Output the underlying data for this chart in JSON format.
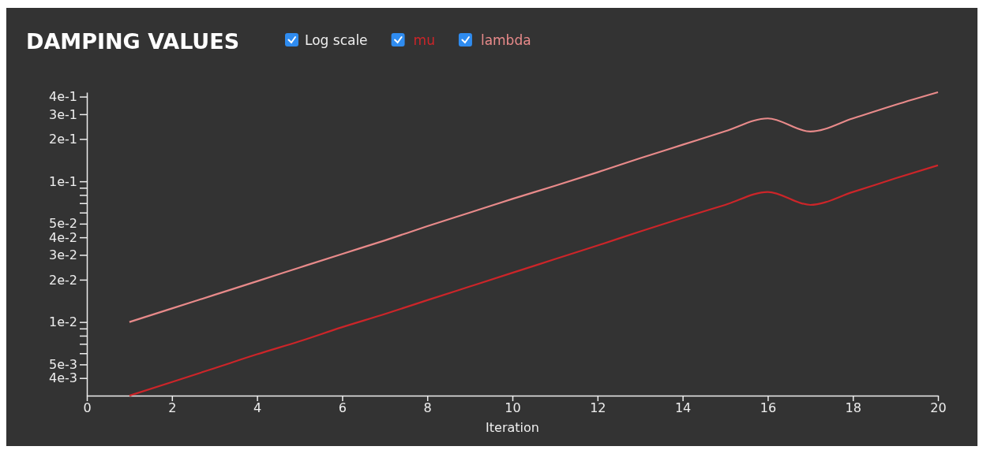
{
  "chart_data": {
    "type": "line",
    "title": "DAMPING VALUES",
    "xlabel": "Iteration",
    "annotations": [
      "Log scale"
    ],
    "log": true,
    "legend": "top",
    "grid": false,
    "x": [
      1,
      2,
      3,
      4,
      5,
      6,
      7,
      8,
      9,
      10,
      11,
      12,
      13,
      14,
      15,
      16,
      17,
      18,
      19,
      20
    ],
    "xlim": [
      0,
      20
    ],
    "xticks": [
      0,
      2,
      4,
      6,
      8,
      10,
      12,
      14,
      16,
      18,
      20
    ],
    "ylim": [
      0.003,
      0.43
    ],
    "yticks": [
      {
        "value": 0.004,
        "label": "4e-3"
      },
      {
        "value": 0.005,
        "label": "5e-3"
      },
      {
        "value": 0.006,
        "label": null
      },
      {
        "value": 0.007,
        "label": null
      },
      {
        "value": 0.008,
        "label": null
      },
      {
        "value": 0.009,
        "label": null
      },
      {
        "value": 0.01,
        "label": "1e-2"
      },
      {
        "value": 0.02,
        "label": "2e-2"
      },
      {
        "value": 0.03,
        "label": "3e-2"
      },
      {
        "value": 0.04,
        "label": "4e-2"
      },
      {
        "value": 0.05,
        "label": "5e-2"
      },
      {
        "value": 0.06,
        "label": null
      },
      {
        "value": 0.07,
        "label": null
      },
      {
        "value": 0.08,
        "label": null
      },
      {
        "value": 0.09,
        "label": null
      },
      {
        "value": 0.1,
        "label": "1e-1"
      },
      {
        "value": 0.2,
        "label": "2e-1"
      },
      {
        "value": 0.3,
        "label": "3e-1"
      },
      {
        "value": 0.4,
        "label": "4e-1"
      }
    ],
    "series": [
      {
        "name": "mu",
        "color": "#cc2529",
        "values": [
          0.003,
          0.00375,
          0.0047,
          0.0059,
          0.0073,
          0.0092,
          0.0114,
          0.0143,
          0.0179,
          0.0224,
          0.028,
          0.035,
          0.044,
          0.055,
          0.068,
          0.084,
          0.068,
          0.084,
          0.105,
          0.13
        ]
      },
      {
        "name": "lambda",
        "color": "#e88a8a",
        "values": [
          0.01,
          0.0125,
          0.0156,
          0.0195,
          0.0244,
          0.0305,
          0.038,
          0.048,
          0.06,
          0.075,
          0.093,
          0.116,
          0.146,
          0.182,
          0.227,
          0.28,
          0.226,
          0.28,
          0.35,
          0.43
        ]
      }
    ]
  }
}
